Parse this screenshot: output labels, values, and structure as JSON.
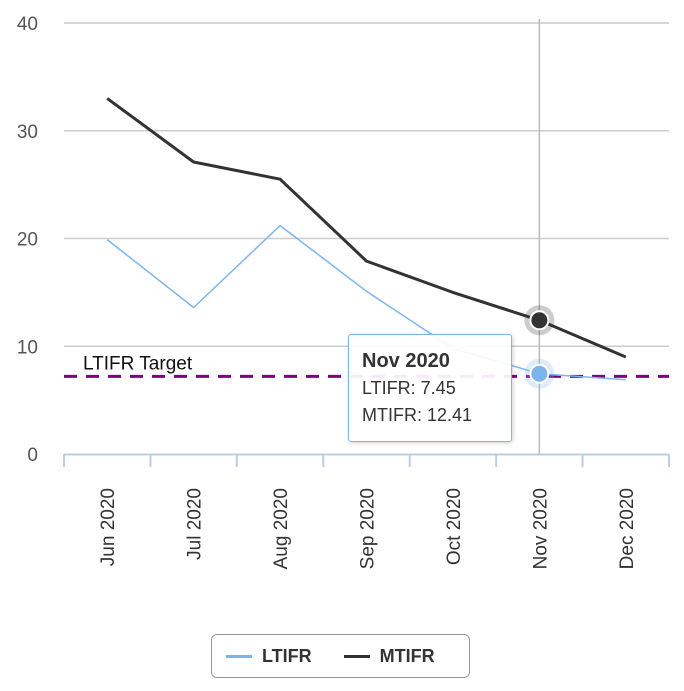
{
  "chart_data": {
    "type": "line",
    "categories": [
      "Jun 2020",
      "Jul 2020",
      "Aug 2020",
      "Sep 2020",
      "Oct 2020",
      "Nov 2020",
      "Dec 2020"
    ],
    "series": [
      {
        "name": "LTIFR",
        "values": [
          19.9,
          13.6,
          21.2,
          15.1,
          9.8,
          7.45,
          6.9
        ],
        "color": "#7cb5ec"
      },
      {
        "name": "MTIFR",
        "values": [
          33.0,
          27.1,
          25.5,
          17.9,
          15.0,
          12.41,
          9.0
        ],
        "color": "#333333"
      }
    ],
    "ylim": [
      0,
      40
    ],
    "yticks": [
      0,
      10,
      20,
      30,
      40
    ],
    "grid": true,
    "legend_placement": "bottom-center",
    "plot_lines": [
      {
        "label": "LTIFR Target",
        "value": 7.2,
        "color": "#800080",
        "style": "dashed"
      }
    ],
    "tooltip": {
      "title": "Nov 2020",
      "category_index": 5,
      "rows": [
        {
          "series": "LTIFR",
          "text": "LTIFR: 7.45"
        },
        {
          "series": "MTIFR",
          "text": "MTIFR: 12.41"
        }
      ]
    }
  }
}
